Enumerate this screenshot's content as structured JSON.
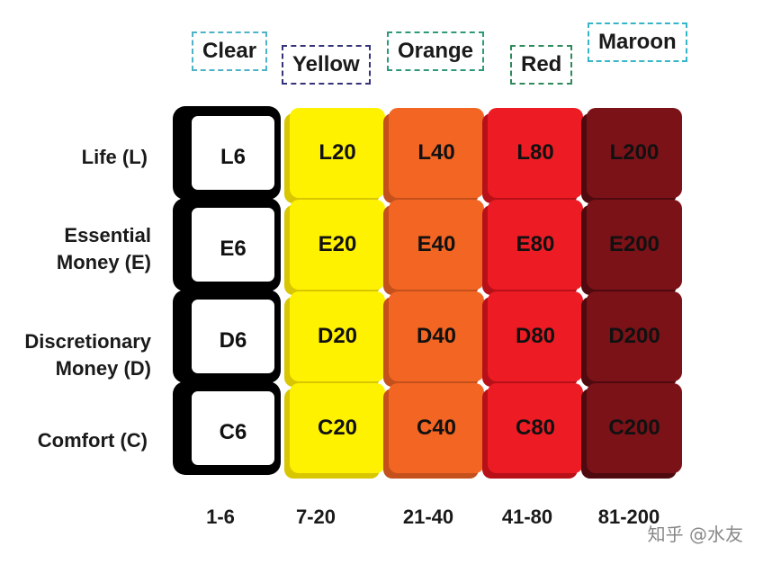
{
  "columns": [
    {
      "name": "Clear",
      "range": "1-6",
      "color": "#ffffff",
      "border": "#4fb3c8"
    },
    {
      "name": "Yellow",
      "range": "7-20",
      "color": "#fff200",
      "border": "#33337a"
    },
    {
      "name": "Orange",
      "range": "21-40",
      "color": "#f26522",
      "border": "#2e9a7a"
    },
    {
      "name": "Red",
      "range": "41-80",
      "color": "#ed1c24",
      "border": "#2e8a5a"
    },
    {
      "name": "Maroon",
      "range": "81-200",
      "color": "#7b1218",
      "border": "#35b6c8"
    }
  ],
  "rows": [
    {
      "label": "Life (L)",
      "cells": [
        "L6",
        "L20",
        "L40",
        "L80",
        "L200"
      ]
    },
    {
      "label": "Essential\nMoney (E)",
      "cells": [
        "E6",
        "E20",
        "E40",
        "E80",
        "E200"
      ]
    },
    {
      "label": "Discretionary\nMoney (D)",
      "cells": [
        "D6",
        "D20",
        "D40",
        "D80",
        "D200"
      ]
    },
    {
      "label": "Comfort (C)",
      "cells": [
        "C6",
        "C20",
        "C40",
        "C80",
        "C200"
      ]
    }
  ],
  "watermark": "知乎 @水友"
}
